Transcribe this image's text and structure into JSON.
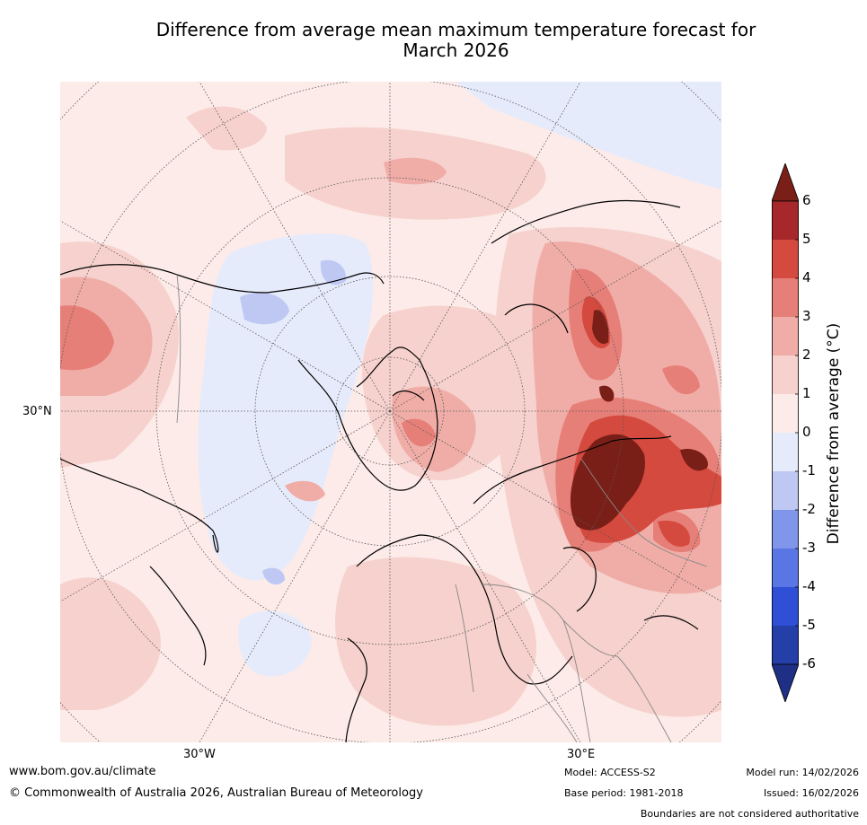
{
  "title": {
    "line1": "Difference from average mean maximum temperature forecast for",
    "line2": "March 2026"
  },
  "map": {
    "projection": "north-polar-stereographic",
    "axis_labels": {
      "lat_left": "30°N",
      "lon_bottom_left": "30°W",
      "lon_bottom_right": "30°E"
    },
    "regions": [
      {
        "name": "north-america-west",
        "anomaly": "warm",
        "range": "2 to 3"
      },
      {
        "name": "canada-greenland",
        "anomaly": "cool",
        "range": "-2 to 0"
      },
      {
        "name": "greenland-east-arctic",
        "anomaly": "warm",
        "range": "1 to 3"
      },
      {
        "name": "siberia",
        "anomaly": "very-warm",
        "range": "3 to 6+"
      },
      {
        "name": "europe",
        "anomaly": "warm",
        "range": "0 to 2"
      }
    ]
  },
  "colorbar": {
    "label": "Difference from average ($^\\circ$C)",
    "label_text": "Difference from average (°C)",
    "ticks": [
      "6",
      "5",
      "4",
      "3",
      "2",
      "1",
      "0",
      "-1",
      "-2",
      "-3",
      "-4",
      "-5",
      "-6"
    ],
    "levels": [
      6,
      5,
      4,
      3,
      2,
      1,
      0,
      -1,
      -2,
      -3,
      -4,
      -5,
      -6
    ],
    "colors": [
      "#7a1f17",
      "#a6282a",
      "#d54a3f",
      "#e67f78",
      "#f0ada7",
      "#f6d1cd",
      "#fcebe8",
      "#e6ebfb",
      "#bec8f2",
      "#8096ea",
      "#5a75e4",
      "#2e4fd6",
      "#243fa8",
      "#1e2f85"
    ]
  },
  "footer": {
    "website": "www.bom.gov.au/climate",
    "copyright": "© Commonwealth of Australia 2026, Australian Bureau of Meteorology",
    "model": "Model: ACCESS-S2",
    "base_period": "Base period: 1981-2018",
    "model_run": "Model run: 14/02/2026",
    "issued": "Issued: 16/02/2026",
    "disclaimer": "Boundaries are not considered authoritative"
  }
}
